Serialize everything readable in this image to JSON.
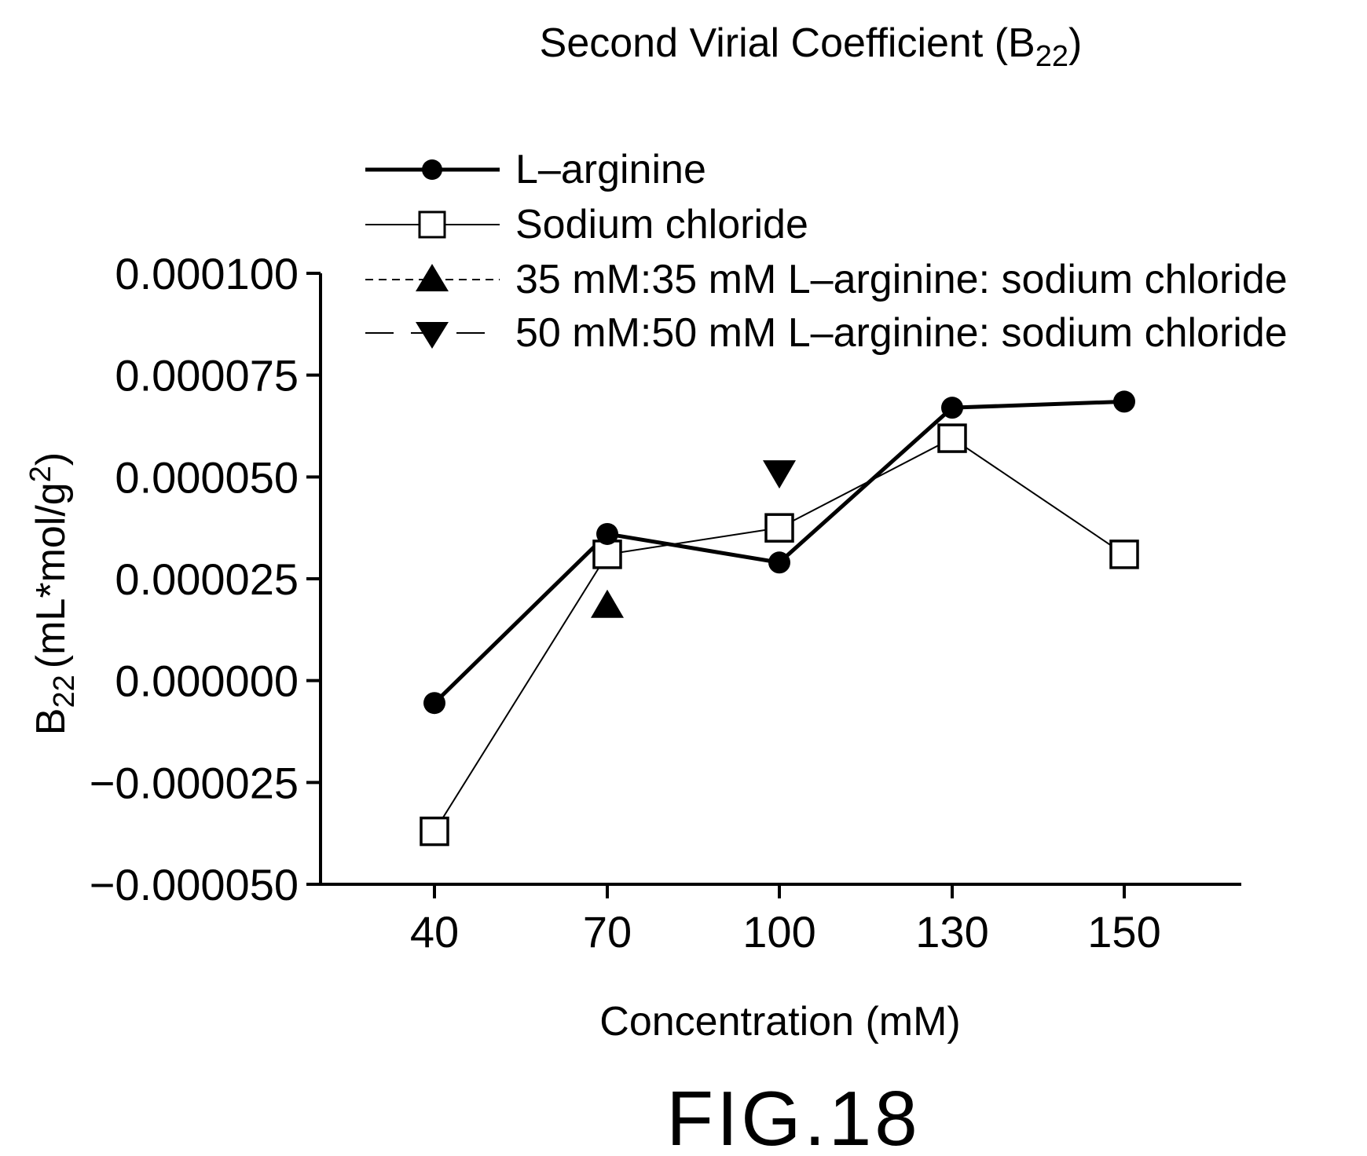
{
  "chart_data": {
    "type": "line",
    "title_main": "Second Virial Coefficient (B",
    "title_sub": "22",
    "title_end": ")",
    "xlabel": "Concentration (mM)",
    "ylabel_main": "B",
    "ylabel_sub": "22",
    "ylabel_unit": "(mL*mol/g",
    "ylabel_sup": "2",
    "ylabel_end": ")",
    "x_categories": [
      "40",
      "70",
      "100",
      "130",
      "150"
    ],
    "y_ticks": [
      "0.000100",
      "0.000075",
      "0.000050",
      "0.000025",
      "0.000000",
      "−0.000025",
      "−0.000050"
    ],
    "ylim": [
      -5e-05,
      0.0001
    ],
    "series": [
      {
        "name": "L–arginine",
        "marker": "filled-circle",
        "line": "thick-solid",
        "values": [
          -5.5e-06,
          3.6e-05,
          2.9e-05,
          6.7e-05,
          6.85e-05
        ]
      },
      {
        "name": "Sodium chloride",
        "marker": "open-square",
        "line": "thin-solid",
        "values": [
          -3.7e-05,
          3.1e-05,
          3.75e-05,
          5.95e-05,
          3.1e-05
        ]
      },
      {
        "name": "35 mM:35 mM L–arginine: sodium chloride",
        "marker": "filled-triangle-up",
        "line": "dashed",
        "values": [
          null,
          1.85e-05,
          null,
          null,
          null
        ]
      },
      {
        "name": "50 mM:50 mM L–arginine: sodium chloride",
        "marker": "filled-triangle-down",
        "line": "long-dash",
        "values": [
          null,
          null,
          5.1e-05,
          null,
          null
        ]
      }
    ],
    "legend_position": "top"
  },
  "figure_label": "FIG.18"
}
